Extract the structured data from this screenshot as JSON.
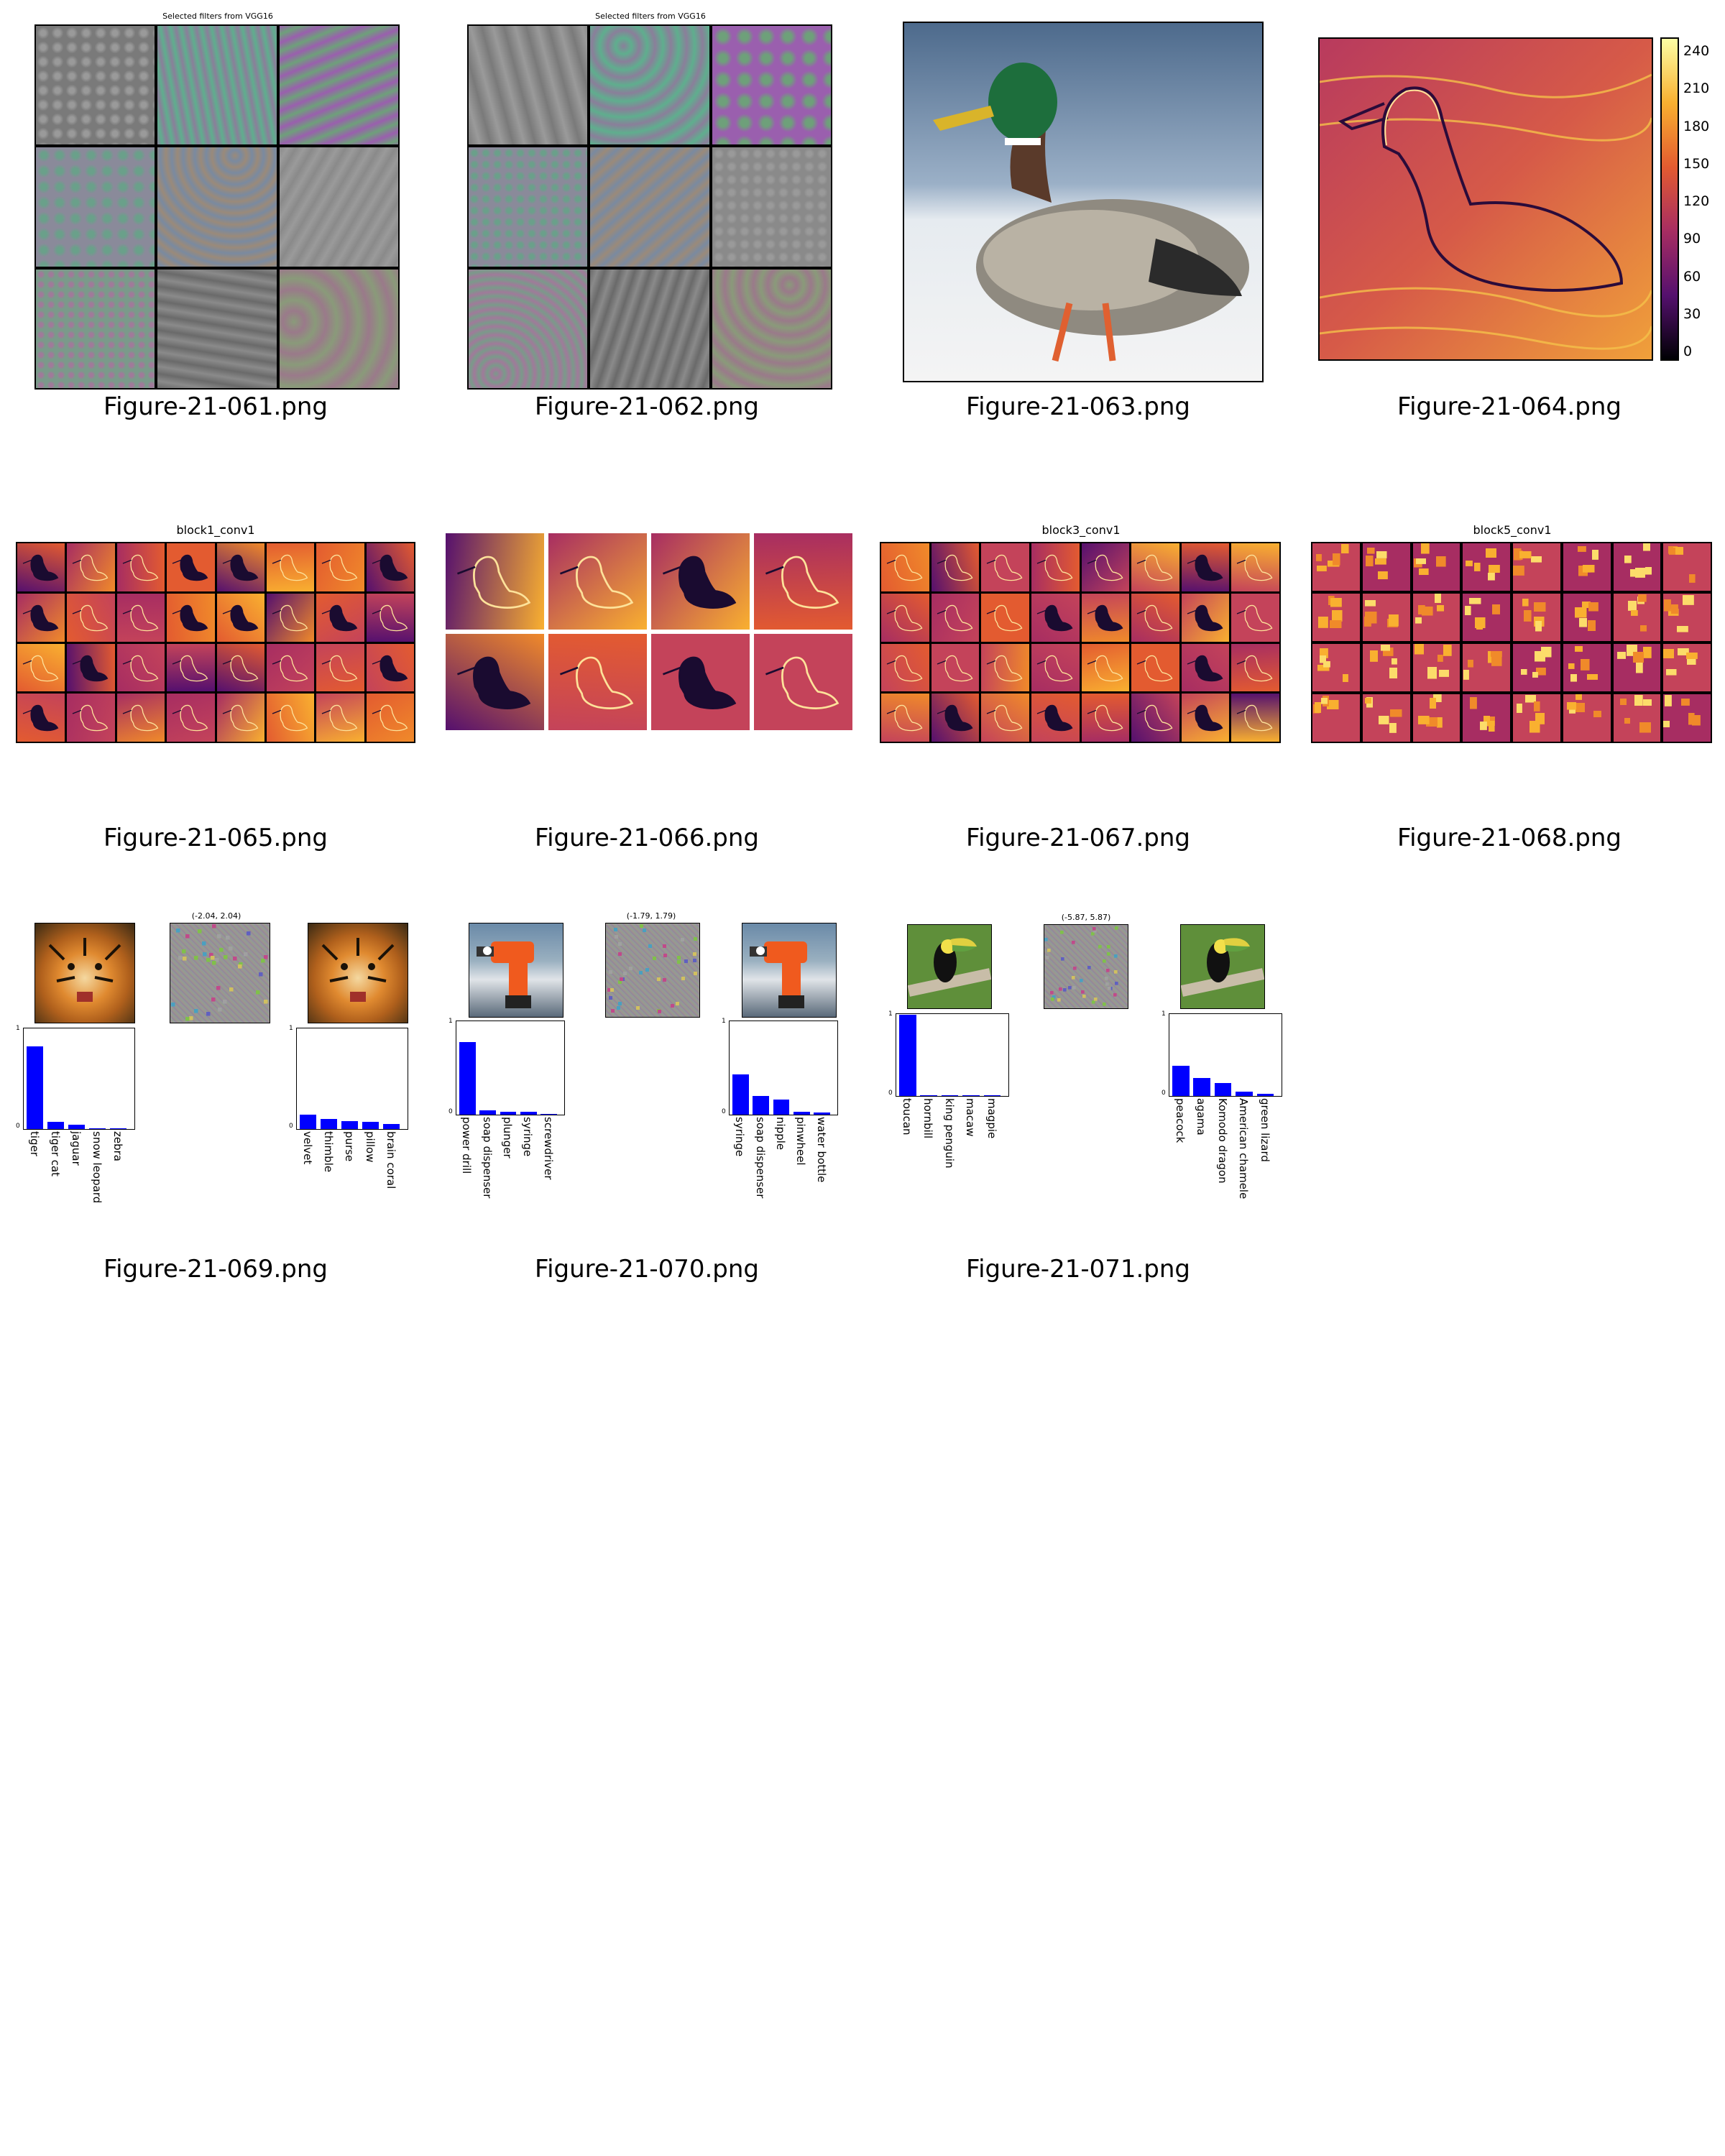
{
  "figures": {
    "f061": {
      "filename": "Figure‐21‐061.png",
      "title": "Selected filters from VGG16"
    },
    "f062": {
      "filename": "Figure‐21‐062.png",
      "title": "Selected filters from VGG16"
    },
    "f063": {
      "filename": "Figure‐21‐063.png"
    },
    "f064": {
      "filename": "Figure‐21‐064.png",
      "colorbar_ticks": [
        "240",
        "210",
        "180",
        "150",
        "120",
        "90",
        "60",
        "30",
        "0"
      ]
    },
    "f065": {
      "filename": "Figure‐21‐065.png",
      "title": "block1_conv1"
    },
    "f066": {
      "filename": "Figure‐21‐066.png"
    },
    "f067": {
      "filename": "Figure‐21‐067.png",
      "title": "block3_conv1"
    },
    "f068": {
      "filename": "Figure‐21‐068.png",
      "title": "block5_conv1"
    },
    "f069": {
      "filename": "Figure‐21‐069.png",
      "noise_label": "(-2.04, 2.04)"
    },
    "f070": {
      "filename": "Figure‐21‐070.png",
      "noise_label": "(-1.79, 1.79)"
    },
    "f071": {
      "filename": "Figure‐21‐071.png",
      "noise_label": "(-5.87, 5.87)"
    }
  },
  "chart_data": [
    {
      "type": "bar",
      "id": "f069-left",
      "categories": [
        "tiger",
        "tiger cat",
        "jaguar",
        "snow leopard",
        "zebra"
      ],
      "values": [
        0.82,
        0.07,
        0.04,
        0.01,
        0.01
      ],
      "ylim": [
        0,
        1
      ],
      "yticks": [
        "0",
        "1"
      ]
    },
    {
      "type": "bar",
      "id": "f069-right",
      "categories": [
        "velvet",
        "thimble",
        "purse",
        "pillow",
        "brain coral"
      ],
      "values": [
        0.14,
        0.1,
        0.08,
        0.07,
        0.05
      ],
      "ylim": [
        0,
        1
      ],
      "yticks": [
        "0",
        "1"
      ]
    },
    {
      "type": "bar",
      "id": "f070-left",
      "categories": [
        "power drill",
        "soap dispenser",
        "plunger",
        "syringe",
        "screwdriver"
      ],
      "values": [
        0.78,
        0.05,
        0.03,
        0.03,
        0.01
      ],
      "ylim": [
        0,
        1
      ],
      "yticks": [
        "0",
        "1"
      ]
    },
    {
      "type": "bar",
      "id": "f070-right",
      "categories": [
        "syringe",
        "soap dispenser",
        "nipple",
        "pinwheel",
        "water bottle"
      ],
      "values": [
        0.43,
        0.2,
        0.16,
        0.03,
        0.02
      ],
      "ylim": [
        0,
        1
      ],
      "yticks": [
        "0",
        "1"
      ]
    },
    {
      "type": "bar",
      "id": "f071-left",
      "categories": [
        "toucan",
        "hornbill",
        "king penguin",
        "macaw",
        "magpie"
      ],
      "values": [
        0.99,
        0.0,
        0.0,
        0.0,
        0.0
      ],
      "ylim": [
        0,
        1
      ],
      "yticks": [
        "0",
        "1"
      ]
    },
    {
      "type": "bar",
      "id": "f071-right",
      "categories": [
        "peacock",
        "agama",
        "Komodo dragon",
        "American chamele",
        "green lizard"
      ],
      "values": [
        0.37,
        0.22,
        0.16,
        0.05,
        0.03
      ],
      "ylim": [
        0,
        1
      ],
      "yticks": [
        "0",
        "1"
      ]
    }
  ],
  "colors": {
    "bar": "#0000ff",
    "inferno_dark": "#1a0b30",
    "inferno_mid": "#b83a5e",
    "inferno_light": "#f8a03a"
  },
  "icons": {
    "f063": "mallard-duck-photo",
    "f069": "tiger-photo",
    "f070": "power-drill-photo",
    "f071": "toucan-photo"
  }
}
